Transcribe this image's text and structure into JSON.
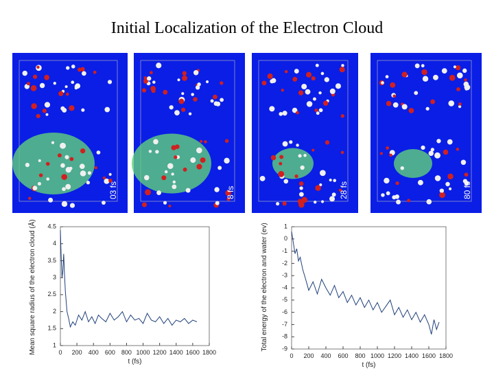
{
  "slide": {
    "title": "Initial Localization of the Electron Cloud",
    "panels": [
      "03 fs",
      "8 fs",
      "28 fs",
      "80 fs"
    ]
  },
  "chart_data": [
    {
      "type": "line",
      "xlabel": "t (fs)",
      "ylabel": "Mean square radius of the electron cloud (Å)",
      "xlim": [
        0,
        1800
      ],
      "xticks": [
        0,
        200,
        400,
        600,
        800,
        1000,
        1200,
        1400,
        1600,
        1800
      ],
      "ylim": [
        1,
        4.5
      ],
      "yticks": [
        1,
        1.5,
        2,
        2.5,
        3,
        3.5,
        4,
        4.5
      ],
      "series": [
        {
          "color": "#1f3f7a",
          "x": [
            0,
            10,
            20,
            30,
            40,
            50,
            60,
            80,
            100,
            120,
            150,
            180,
            220,
            260,
            300,
            340,
            380,
            420,
            460,
            500,
            550,
            600,
            650,
            700,
            750,
            800,
            850,
            900,
            950,
            1000,
            1050,
            1100,
            1150,
            1200,
            1250,
            1300,
            1350,
            1400,
            1450,
            1500,
            1550,
            1600,
            1650
          ],
          "values": [
            4.4,
            3.6,
            3.0,
            3.2,
            3.7,
            3.1,
            2.6,
            2.0,
            1.8,
            1.55,
            1.7,
            1.6,
            1.9,
            1.75,
            2.0,
            1.7,
            1.85,
            1.65,
            1.9,
            1.8,
            1.7,
            1.95,
            1.75,
            1.85,
            2.0,
            1.7,
            1.9,
            1.75,
            1.8,
            1.65,
            1.95,
            1.75,
            1.7,
            1.85,
            1.65,
            1.8,
            1.6,
            1.75,
            1.7,
            1.8,
            1.65,
            1.75,
            1.7
          ]
        }
      ]
    },
    {
      "type": "line",
      "xlabel": "t (fs)",
      "ylabel": "Total energy of the electron and water (ev)",
      "xlim": [
        0,
        1800
      ],
      "xticks": [
        0,
        200,
        400,
        600,
        800,
        1000,
        1200,
        1400,
        1600,
        1800
      ],
      "ylim": [
        -9,
        1
      ],
      "yticks": [
        -9,
        -8,
        -7,
        -6,
        -5,
        -4,
        -3,
        -2,
        -1,
        0,
        1
      ],
      "series": [
        {
          "color": "#1f3f7a",
          "x": [
            0,
            20,
            40,
            60,
            80,
            100,
            130,
            160,
            200,
            250,
            300,
            350,
            400,
            450,
            500,
            550,
            600,
            650,
            700,
            750,
            800,
            850,
            900,
            950,
            1000,
            1050,
            1100,
            1150,
            1200,
            1250,
            1300,
            1350,
            1400,
            1450,
            1500,
            1550,
            1600,
            1630,
            1660,
            1690,
            1720
          ],
          "values": [
            0.6,
            -0.3,
            -1.2,
            -0.8,
            -1.8,
            -1.5,
            -2.5,
            -3.2,
            -4.2,
            -3.5,
            -4.5,
            -3.3,
            -4.0,
            -4.6,
            -3.8,
            -4.8,
            -4.3,
            -5.2,
            -4.6,
            -5.4,
            -4.8,
            -5.6,
            -5.0,
            -5.8,
            -5.2,
            -6.0,
            -5.5,
            -5.0,
            -6.2,
            -5.6,
            -6.4,
            -5.8,
            -6.6,
            -6.0,
            -6.8,
            -6.2,
            -7.0,
            -7.8,
            -6.6,
            -7.4,
            -6.8
          ]
        }
      ]
    }
  ]
}
